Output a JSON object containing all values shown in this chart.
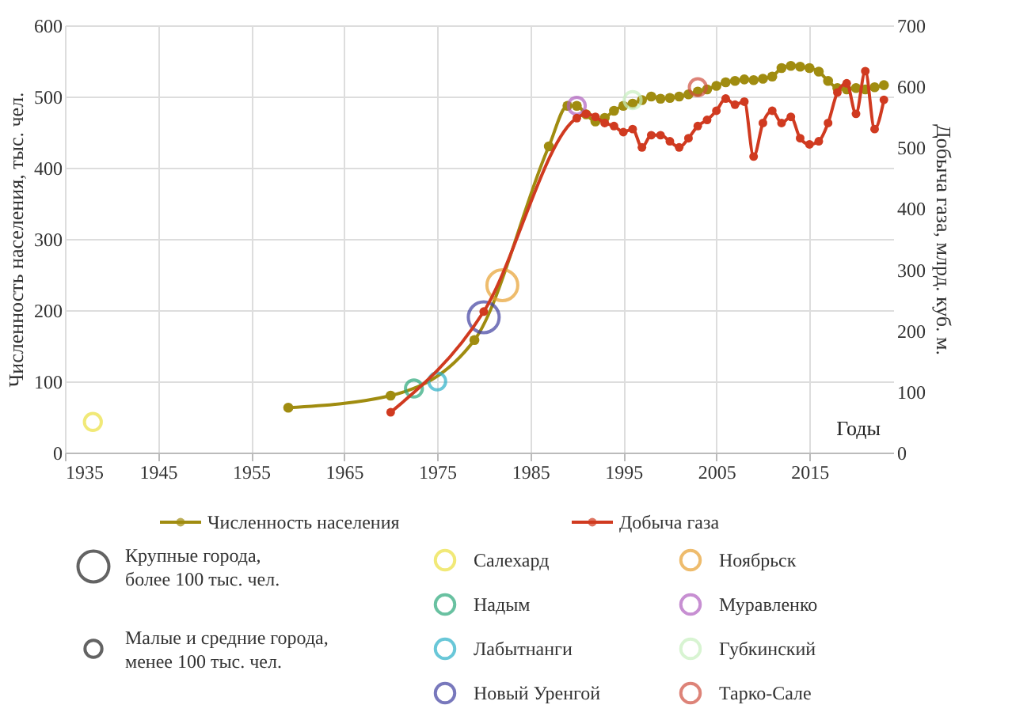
{
  "chart_data": {
    "type": "line",
    "ylabel": "Численность населения, тыс. чел.",
    "y2label": "Добыча газа, млрд. куб. м.",
    "xlabel": "Годы",
    "xlim": [
      1935,
      2024
    ],
    "xticks": [
      1935,
      1945,
      1955,
      1965,
      1975,
      1985,
      1995,
      2005,
      2015
    ],
    "ylim": [
      0,
      600
    ],
    "yticks": [
      0,
      100,
      200,
      300,
      400,
      500,
      600
    ],
    "y2lim": [
      0,
      700
    ],
    "y2ticks": [
      0,
      100,
      200,
      300,
      400,
      500,
      600,
      700
    ],
    "grid": true,
    "legend": "bottom",
    "marker": "circle",
    "annotations": [
      "Крупные города, более 100 тыс. чел.",
      "Малые и средние города, менее 100 тыс. чел."
    ],
    "series": [
      {
        "name": "Численность населения",
        "color": "#a08c10",
        "x": [
          1959,
          1970,
          1979,
          1987,
          1989,
          1990,
          1991,
          1992,
          1993,
          1994,
          1995,
          1996,
          1997,
          1998,
          1999,
          2000,
          2001,
          2002,
          2003,
          2004,
          2005,
          2006,
          2007,
          2008,
          2009,
          2010,
          2011,
          2012,
          2013,
          2014,
          2015,
          2016,
          2017,
          2018,
          2019,
          2020,
          2021,
          2022,
          2023
        ],
        "values": [
          63,
          80,
          158,
          430,
          487,
          487,
          475,
          465,
          470,
          480,
          487,
          490,
          495,
          500,
          497,
          498,
          500,
          503,
          507,
          510,
          515,
          520,
          522,
          524,
          523,
          525,
          528,
          540,
          543,
          542,
          540,
          535,
          522,
          512,
          510,
          512,
          510,
          513,
          516
        ]
      },
      {
        "name": "Добыча газа",
        "axis": "y2",
        "color": "#d03a20",
        "x": [
          1970,
          1980,
          1990,
          1991,
          1992,
          1993,
          1994,
          1995,
          1996,
          1997,
          1998,
          1999,
          2000,
          2001,
          2002,
          2003,
          2004,
          2005,
          2006,
          2007,
          2008,
          2009,
          2010,
          2011,
          2012,
          2013,
          2014,
          2015,
          2016,
          2017,
          2018,
          2019,
          2020,
          2021,
          2022,
          2023
        ],
        "values": [
          66,
          231,
          548,
          555,
          550,
          540,
          535,
          525,
          530,
          500,
          520,
          520,
          510,
          500,
          515,
          535,
          545,
          560,
          580,
          570,
          575,
          485,
          540,
          560,
          540,
          550,
          515,
          505,
          510,
          540,
          590,
          605,
          555,
          625,
          530,
          578
        ]
      },
      {
        "name": "Салехард",
        "type": "bubble",
        "color": "#ece040",
        "x": [
          1938
        ],
        "values": [
          43
        ],
        "sizes": [
          0.3
        ]
      },
      {
        "name": "Надым",
        "type": "bubble",
        "color": "#2aa87a",
        "x": [
          1972.5
        ],
        "values": [
          90
        ],
        "sizes": [
          0.3
        ]
      },
      {
        "name": "Лабытнанги",
        "type": "bubble",
        "color": "#2ab0c8",
        "x": [
          1975
        ],
        "values": [
          100
        ],
        "sizes": [
          0.3
        ]
      },
      {
        "name": "Новый Уренгой",
        "type": "bubble",
        "color": "#4040a0",
        "x": [
          1980
        ],
        "values": [
          190
        ],
        "sizes": [
          1
        ]
      },
      {
        "name": "Ноябрьск",
        "type": "bubble",
        "color": "#e8a030",
        "x": [
          1982
        ],
        "values": [
          235
        ],
        "sizes": [
          1
        ]
      },
      {
        "name": "Муравленко",
        "type": "bubble",
        "color": "#b060c0",
        "x": [
          1990
        ],
        "values": [
          487
        ],
        "sizes": [
          0.3
        ]
      },
      {
        "name": "Губкинский",
        "type": "bubble",
        "color": "#c8f0c0",
        "x": [
          1996
        ],
        "values": [
          495
        ],
        "sizes": [
          0.3
        ]
      },
      {
        "name": "Тарко-Сале",
        "type": "bubble",
        "color": "#d05040",
        "x": [
          2003
        ],
        "values": [
          513
        ],
        "sizes": [
          0.3
        ]
      }
    ]
  }
}
